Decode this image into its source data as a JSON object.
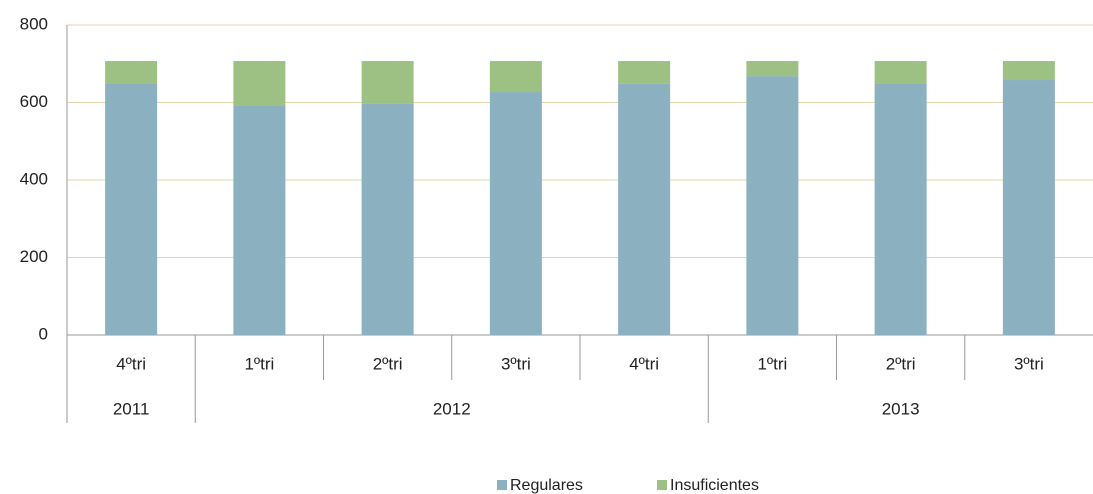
{
  "chart_data": {
    "type": "stacked-bar",
    "categories": [
      "4ºtri",
      "1ºtri",
      "2ºtri",
      "3ºtri",
      "4ºtri",
      "1ºtri",
      "2ºtri",
      "3ºtri"
    ],
    "years": [
      "2011",
      "2012",
      null,
      null,
      null,
      "2013",
      null,
      null
    ],
    "series": [
      {
        "name": "Regulares",
        "color": "#8bb0bf",
        "values": [
          650,
          591,
          598,
          627,
          648,
          668,
          650,
          658
        ]
      },
      {
        "name": "Insuficientes",
        "color": "#9dc183",
        "values": [
          57,
          116,
          109,
          80,
          59,
          39,
          57,
          49
        ]
      }
    ],
    "ylim": [
      0,
      800
    ],
    "yticks": [
      0,
      200,
      400,
      600,
      800
    ],
    "grid": true
  }
}
